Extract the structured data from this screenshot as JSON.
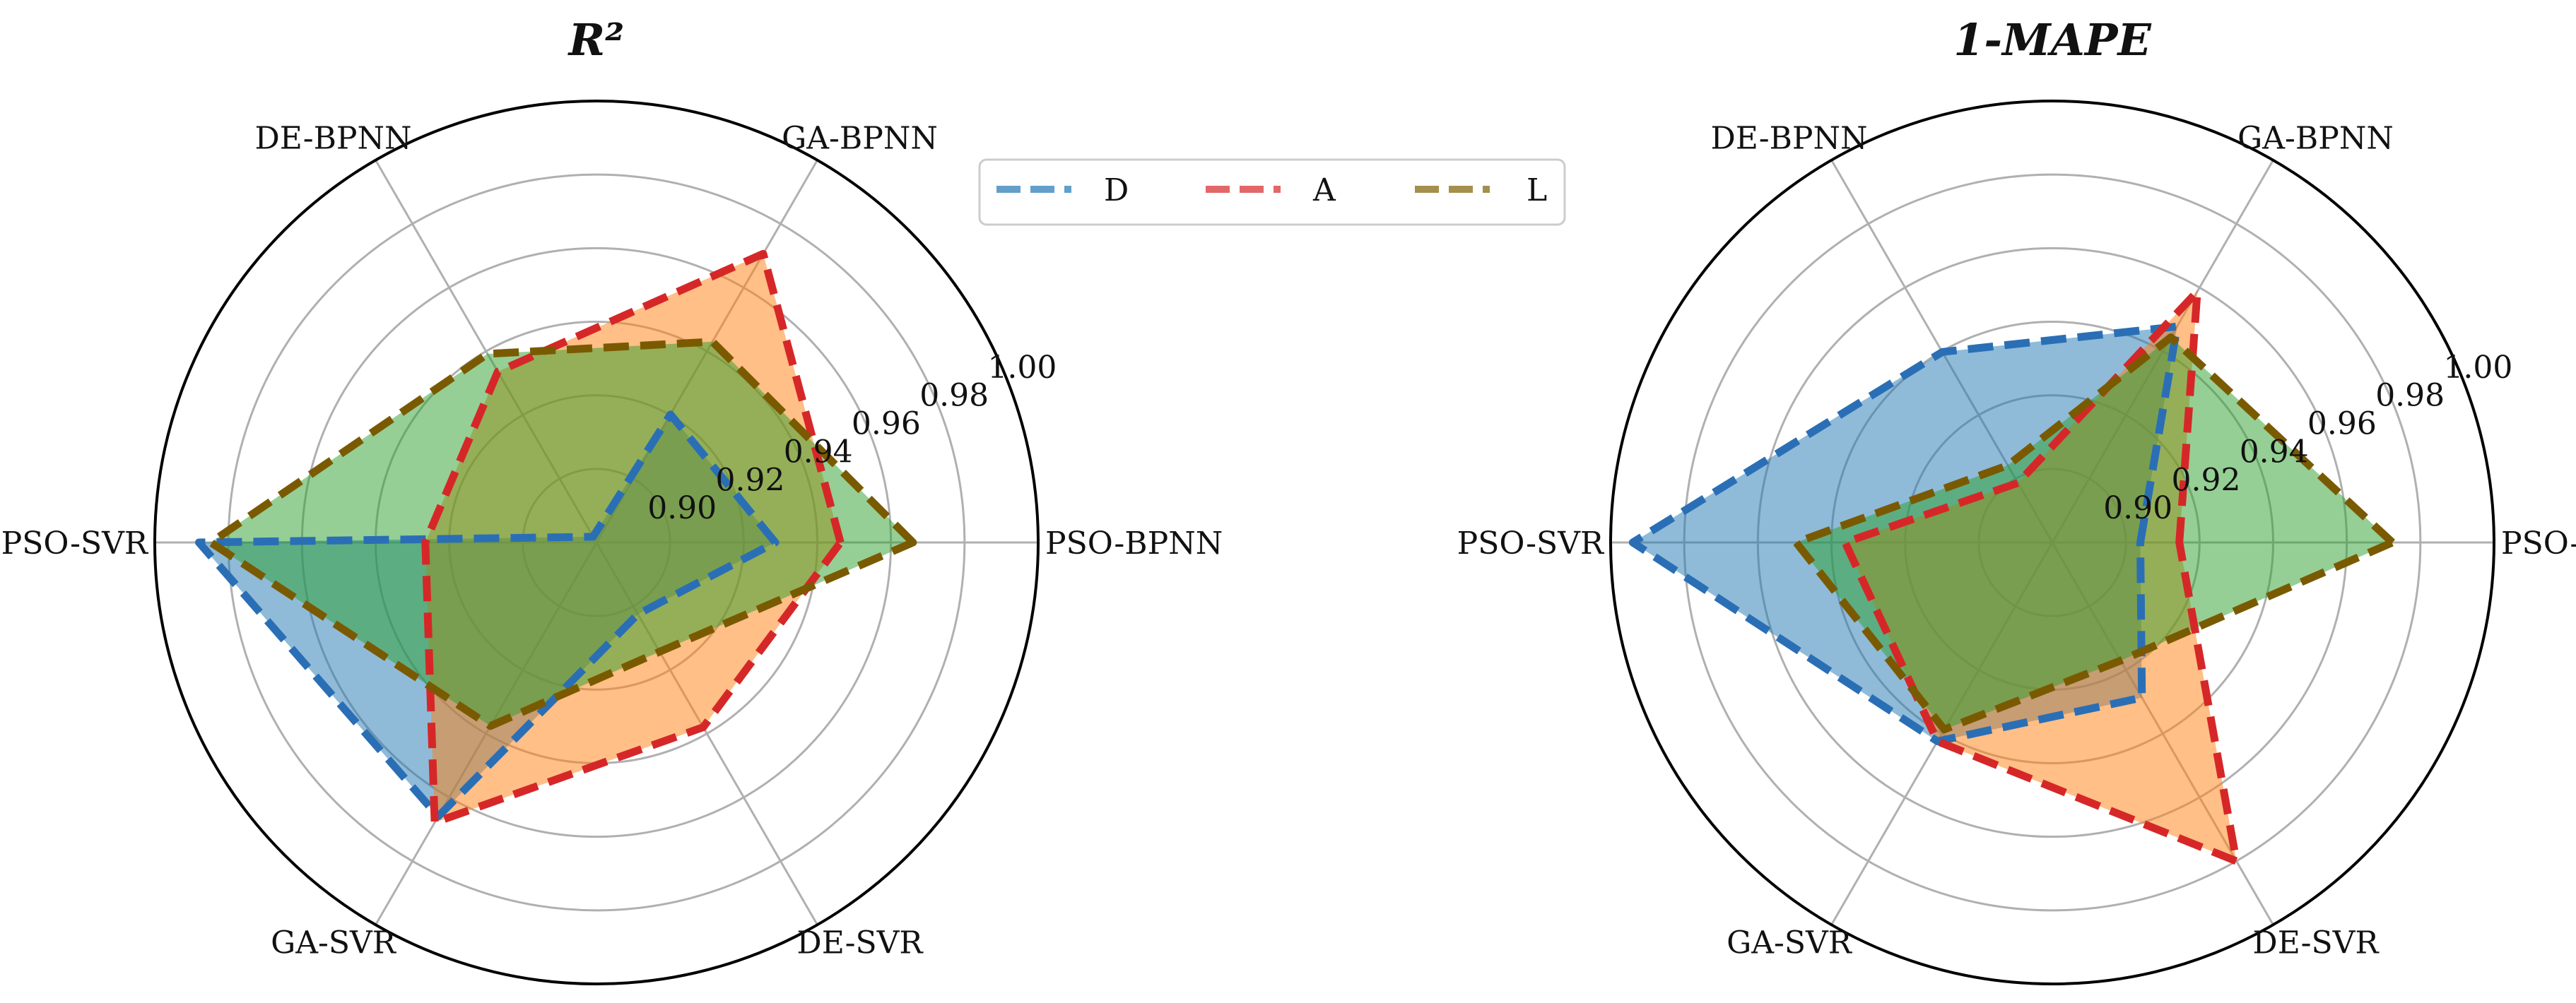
{
  "chart_data": [
    {
      "type": "radar",
      "title": "R²",
      "categories": [
        "PSO-BPNN",
        "GA-BPNN",
        "DE-BPNN",
        "PSO-SVR",
        "GA-SVR",
        "DE-SVR"
      ],
      "rlim": [
        0.88,
        1.0
      ],
      "ticks": [
        0.9,
        0.92,
        0.94,
        0.96,
        0.98,
        1.0
      ],
      "tick_labels": [
        "0.90",
        "0.92",
        "0.94",
        "0.96",
        "0.98",
        "1.00"
      ],
      "series": [
        {
          "name": "D",
          "values": [
            0.9286,
            0.9202,
            0.8818,
            0.988,
            0.966,
            0.9025
          ]
        },
        {
          "name": "A",
          "values": [
            0.9463,
            0.9706,
            0.9336,
            0.9265,
            0.9679,
            0.938
          ]
        },
        {
          "name": "L",
          "values": [
            0.966,
            0.943,
            0.9392,
            0.9848,
            0.9376,
            0.9143
          ]
        }
      ]
    },
    {
      "type": "radar",
      "title": "1-MAPE",
      "categories": [
        "PSO-BPNN",
        "GA-BPNN",
        "DE-BPNN",
        "PSO-SVR",
        "GA-SVR",
        "DE-SVR"
      ],
      "rlim": [
        0.88,
        1.0
      ],
      "ticks": [
        0.9,
        0.92,
        0.94,
        0.96,
        0.98,
        1.0
      ],
      "tick_labels": [
        "0.90",
        "0.92",
        "0.94",
        "0.96",
        "0.98",
        "1.00"
      ],
      "series": [
        {
          "name": "D",
          "values": [
            0.9039,
            0.9478,
            0.9398,
            0.994,
            0.9424,
            0.9287
          ]
        },
        {
          "name": "A",
          "values": [
            0.9145,
            0.9588,
            0.8987,
            0.9363,
            0.9424,
            0.98
          ]
        },
        {
          "name": "L",
          "values": [
            0.9724,
            0.9444,
            0.9042,
            0.9496,
            0.9387,
            0.9171
          ]
        }
      ]
    }
  ],
  "legend": [
    {
      "name": "D",
      "color": "#1f77b4"
    },
    {
      "name": "A",
      "color": "#d62728"
    },
    {
      "name": "L",
      "color": "#7f6000"
    }
  ],
  "colors": {
    "D": {
      "line": "#2a6fb5",
      "fill": "#1f77b4"
    },
    "A": {
      "line": "#d62728",
      "fill": "#ff7f0e"
    },
    "L": {
      "line": "#7a5a00",
      "fill": "#2ca02c"
    },
    "grid": "#b0b0b0",
    "frame": "#000000"
  }
}
